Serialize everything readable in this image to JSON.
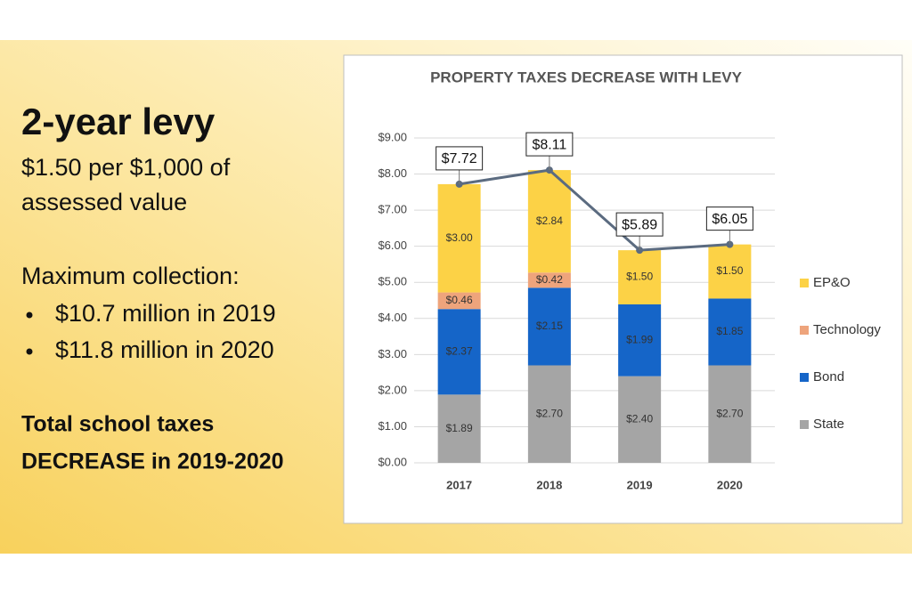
{
  "slide": {
    "title": "2-year levy",
    "lines": [
      "$1.50 per $1,000 of",
      "assessed value"
    ],
    "collection_heading": "Maximum collection:",
    "bullets": [
      "$10.7 million in 2019",
      "$11.8 million in 2020"
    ],
    "conclusion": [
      "Total school taxes",
      "DECREASE in 2019-2020"
    ]
  },
  "chart_data": {
    "type": "bar",
    "stacked": true,
    "title": "PROPERTY TAXES DECREASE WITH LEVY",
    "categories": [
      "2017",
      "2018",
      "2019",
      "2020"
    ],
    "series": [
      {
        "name": "State",
        "color": "#a5a5a5",
        "values": [
          1.89,
          2.7,
          2.4,
          2.7
        ],
        "value_labels": [
          "$1.89",
          "$2.70",
          "$2.40",
          "$2.70"
        ]
      },
      {
        "name": "Bond",
        "color": "#1565c8",
        "values": [
          2.37,
          2.15,
          1.99,
          1.85
        ],
        "value_labels": [
          "$2.37",
          "$2.15",
          "$1.99",
          "$1.85"
        ]
      },
      {
        "name": "Technology",
        "color": "#eea47c",
        "values": [
          0.46,
          0.42,
          0,
          0
        ],
        "value_labels": [
          "$0.46",
          "$0.42",
          null,
          null
        ]
      },
      {
        "name": "EP&O",
        "color": "#fcd246",
        "values": [
          3.0,
          2.84,
          1.5,
          1.5
        ],
        "value_labels": [
          "$3.00",
          "$2.84",
          "$1.50",
          "$1.50"
        ]
      }
    ],
    "line": {
      "color": "#5b6b80",
      "values": [
        7.72,
        8.11,
        5.89,
        6.05
      ],
      "value_labels": [
        "$7.72",
        "$8.11",
        "$5.89",
        "$6.05"
      ]
    },
    "ylim": [
      0,
      9
    ],
    "yticks": [
      {
        "value": 0,
        "label": "$0.00"
      },
      {
        "value": 1,
        "label": "$1.00"
      },
      {
        "value": 2,
        "label": "$2.00"
      },
      {
        "value": 3,
        "label": "$3.00"
      },
      {
        "value": 4,
        "label": "$4.00"
      },
      {
        "value": 5,
        "label": "$5.00"
      },
      {
        "value": 6,
        "label": "$6.00"
      },
      {
        "value": 7,
        "label": "$7.00"
      },
      {
        "value": 8,
        "label": "$8.00"
      },
      {
        "value": 9,
        "label": "$9.00"
      }
    ],
    "grid": true,
    "legend": "right"
  }
}
